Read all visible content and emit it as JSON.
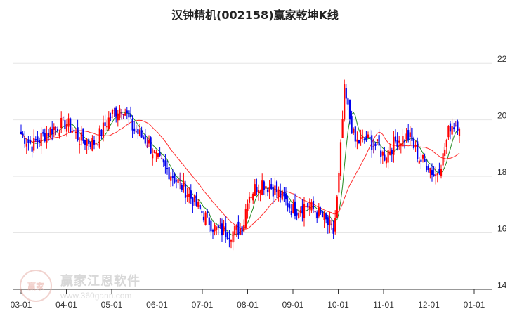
{
  "chart_data": {
    "type": "candlestick",
    "title": "汉钟精机(002158)赢家乾坤K线",
    "ylim": [
      14,
      23
    ],
    "yticks": [
      14,
      16,
      18,
      20,
      22
    ],
    "xticks": [
      "03-01",
      "04-01",
      "05-01",
      "06-01",
      "07-01",
      "08-01",
      "09-01",
      "10-01",
      "11-01",
      "12-01",
      "01-01"
    ],
    "grid": true,
    "reference_line": 20.1,
    "colors": {
      "up": "#ff0000",
      "down": "#0000ee",
      "flat": "#800080",
      "ma_short": "#228b22",
      "ma_long": "#ff3030",
      "grid": "#e6e6e6"
    },
    "price_path": [
      [
        "03-01",
        19.5
      ],
      [
        "03-08",
        19.1
      ],
      [
        "03-15",
        19.4
      ],
      [
        "03-22",
        19.7
      ],
      [
        "04-01",
        19.9
      ],
      [
        "04-10",
        19.3
      ],
      [
        "04-20",
        19.2
      ],
      [
        "05-01",
        20.2
      ],
      [
        "05-08",
        20.5
      ],
      [
        "05-15",
        19.7
      ],
      [
        "05-25",
        19.2
      ],
      [
        "06-01",
        18.6
      ],
      [
        "06-10",
        18.1
      ],
      [
        "06-20",
        17.5
      ],
      [
        "07-01",
        16.7
      ],
      [
        "07-10",
        16.1
      ],
      [
        "07-20",
        16.0
      ],
      [
        "07-28",
        16.2
      ],
      [
        "08-01",
        17.3
      ],
      [
        "08-10",
        17.8
      ],
      [
        "08-20",
        17.5
      ],
      [
        "08-28",
        17.0
      ],
      [
        "09-01",
        16.8
      ],
      [
        "09-10",
        17.0
      ],
      [
        "09-20",
        16.6
      ],
      [
        "09-28",
        16.0
      ],
      [
        "10-01",
        17.6
      ],
      [
        "10-05",
        21.0
      ],
      [
        "10-12",
        19.2
      ],
      [
        "10-20",
        19.3
      ],
      [
        "10-28",
        19.0
      ],
      [
        "11-01",
        18.7
      ],
      [
        "11-10",
        19.3
      ],
      [
        "11-18",
        19.4
      ],
      [
        "11-25",
        18.6
      ],
      [
        "12-01",
        18.4
      ],
      [
        "12-05",
        18.0
      ],
      [
        "12-10",
        18.6
      ],
      [
        "12-15",
        19.8
      ],
      [
        "12-22",
        19.9
      ]
    ]
  }
}
